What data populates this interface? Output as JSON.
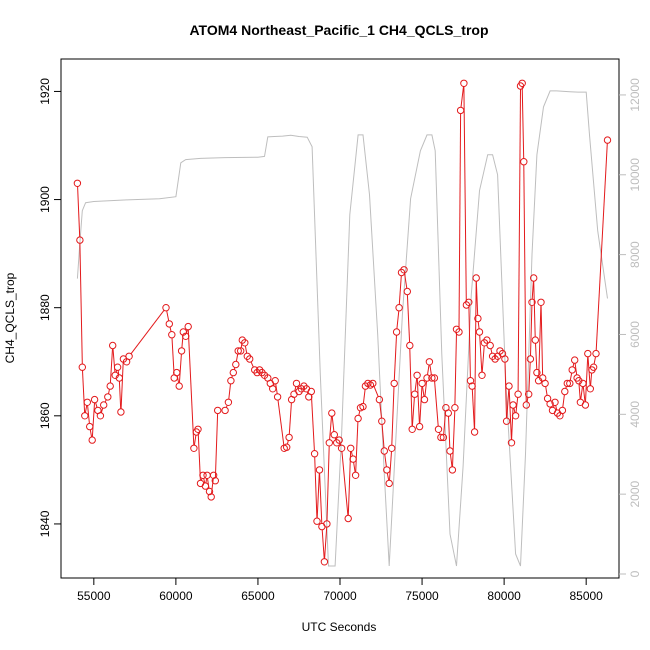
{
  "chart_data": {
    "type": "line",
    "title": "ATOM4 Northeast_Pacific_1 CH4_QCLS_trop",
    "xlabel": "UTC Seconds",
    "ylabel": "CH4_QCLS_trop",
    "xlim": [
      53000,
      87000
    ],
    "ylim": [
      1830,
      1926
    ],
    "y2lim": [
      -100,
      12900
    ],
    "x_ticks": [
      55000,
      60000,
      65000,
      70000,
      75000,
      80000,
      85000
    ],
    "y_ticks": [
      1840,
      1860,
      1880,
      1900,
      1920
    ],
    "y2_ticks": [
      0,
      2000,
      4000,
      6000,
      8000,
      10000,
      12000
    ],
    "grid": false,
    "colors": {
      "primary": "#e31a1c",
      "secondary": "#bebebe",
      "axis": "#000000",
      "secondary_axis": "#bdbdbd"
    },
    "series": [
      {
        "axis": "left",
        "color": "#e31a1c",
        "marker": "open-circle",
        "points": [
          [
            54000,
            1903
          ],
          [
            54150,
            1892.5
          ],
          [
            54300,
            1869
          ],
          [
            54450,
            1860
          ],
          [
            54600,
            1862.5
          ],
          [
            54750,
            1858
          ],
          [
            54900,
            1855.5
          ],
          [
            55050,
            1863
          ],
          [
            55250,
            1861
          ],
          [
            55400,
            1860
          ],
          [
            55600,
            1862
          ],
          [
            55850,
            1863.5
          ],
          [
            56000,
            1865.5
          ],
          [
            56150,
            1873
          ],
          [
            56300,
            1867.5
          ],
          [
            56450,
            1869
          ],
          [
            56550,
            1867
          ],
          [
            56650,
            1860.7
          ],
          [
            56800,
            1870.5
          ],
          [
            57000,
            1870
          ],
          [
            57150,
            1871
          ],
          [
            59400,
            1880
          ],
          [
            59600,
            1877
          ],
          [
            59750,
            1875
          ],
          [
            59900,
            1867
          ],
          [
            60050,
            1868
          ],
          [
            60200,
            1865.5
          ],
          [
            60350,
            1872
          ],
          [
            60450,
            1875.5
          ],
          [
            60600,
            1874.7
          ],
          [
            60750,
            1876.5
          ],
          [
            61100,
            1854
          ],
          [
            61250,
            1857
          ],
          [
            61350,
            1857.5
          ],
          [
            61500,
            1847.5
          ],
          [
            61650,
            1849
          ],
          [
            61800,
            1847
          ],
          [
            61900,
            1849
          ],
          [
            62050,
            1846
          ],
          [
            62150,
            1845
          ],
          [
            62300,
            1849
          ],
          [
            62400,
            1848
          ],
          [
            62550,
            1861
          ],
          [
            63000,
            1861
          ],
          [
            63200,
            1862.5
          ],
          [
            63350,
            1866.5
          ],
          [
            63500,
            1868
          ],
          [
            63650,
            1869.5
          ],
          [
            63800,
            1872
          ],
          [
            63950,
            1872
          ],
          [
            64050,
            1874
          ],
          [
            64200,
            1873.5
          ],
          [
            64350,
            1871
          ],
          [
            64500,
            1870.5
          ],
          [
            64800,
            1868.5
          ],
          [
            64950,
            1868
          ],
          [
            65100,
            1868.5
          ],
          [
            65250,
            1868
          ],
          [
            65400,
            1867.5
          ],
          [
            65600,
            1867
          ],
          [
            65750,
            1866
          ],
          [
            65900,
            1865
          ],
          [
            66050,
            1866.5
          ],
          [
            66200,
            1863.5
          ],
          [
            66600,
            1854
          ],
          [
            66750,
            1854.2
          ],
          [
            66900,
            1856
          ],
          [
            67050,
            1863
          ],
          [
            67200,
            1864
          ],
          [
            67350,
            1866
          ],
          [
            67500,
            1864.5
          ],
          [
            67650,
            1865
          ],
          [
            67800,
            1865.5
          ],
          [
            67950,
            1865
          ],
          [
            68100,
            1863.5
          ],
          [
            68250,
            1864.5
          ],
          [
            68450,
            1853
          ],
          [
            68600,
            1840.5
          ],
          [
            68750,
            1850
          ],
          [
            68900,
            1839.5
          ],
          [
            69050,
            1833
          ],
          [
            69200,
            1840
          ],
          [
            69350,
            1855
          ],
          [
            69500,
            1860.5
          ],
          [
            69650,
            1856.5
          ],
          [
            69800,
            1855
          ],
          [
            69950,
            1855.5
          ],
          [
            70100,
            1854
          ],
          [
            70500,
            1841
          ],
          [
            70650,
            1854
          ],
          [
            70800,
            1852
          ],
          [
            70950,
            1849
          ],
          [
            71100,
            1859.5
          ],
          [
            71250,
            1861.5
          ],
          [
            71400,
            1861.7
          ],
          [
            71550,
            1865.5
          ],
          [
            71700,
            1866
          ],
          [
            71850,
            1865.7
          ],
          [
            72000,
            1866
          ],
          [
            72400,
            1863
          ],
          [
            72550,
            1859
          ],
          [
            72700,
            1853.5
          ],
          [
            72850,
            1850
          ],
          [
            73000,
            1847.5
          ],
          [
            73150,
            1854
          ],
          [
            73300,
            1866
          ],
          [
            73450,
            1875.5
          ],
          [
            73600,
            1880
          ],
          [
            73750,
            1886.5
          ],
          [
            73900,
            1887
          ],
          [
            74100,
            1883
          ],
          [
            74250,
            1873
          ],
          [
            74400,
            1857.5
          ],
          [
            74550,
            1864
          ],
          [
            74700,
            1867.5
          ],
          [
            74850,
            1858
          ],
          [
            75000,
            1866
          ],
          [
            75150,
            1863
          ],
          [
            75300,
            1867
          ],
          [
            75450,
            1870
          ],
          [
            75600,
            1867
          ],
          [
            75750,
            1867
          ],
          [
            76000,
            1857.5
          ],
          [
            76150,
            1856
          ],
          [
            76300,
            1856
          ],
          [
            76450,
            1861.5
          ],
          [
            76600,
            1860.5
          ],
          [
            76700,
            1853.5
          ],
          [
            76850,
            1850
          ],
          [
            77000,
            1861.5
          ],
          [
            77100,
            1876
          ],
          [
            77250,
            1875.5
          ],
          [
            77350,
            1916.5
          ],
          [
            77550,
            1921.5
          ],
          [
            77700,
            1880.5
          ],
          [
            77850,
            1881
          ],
          [
            77950,
            1866.5
          ],
          [
            78050,
            1865.5
          ],
          [
            78200,
            1857
          ],
          [
            78300,
            1885.5
          ],
          [
            78400,
            1878
          ],
          [
            78500,
            1875.5
          ],
          [
            78650,
            1867.5
          ],
          [
            78800,
            1873.5
          ],
          [
            78950,
            1874
          ],
          [
            79150,
            1873
          ],
          [
            79300,
            1871
          ],
          [
            79450,
            1870.5
          ],
          [
            79600,
            1871
          ],
          [
            79750,
            1872
          ],
          [
            79900,
            1871.5
          ],
          [
            80050,
            1870.5
          ],
          [
            80150,
            1859
          ],
          [
            80300,
            1865.5
          ],
          [
            80450,
            1855
          ],
          [
            80550,
            1862
          ],
          [
            80700,
            1860
          ],
          [
            80850,
            1864
          ],
          [
            81000,
            1921
          ],
          [
            81100,
            1921.5
          ],
          [
            81200,
            1907
          ],
          [
            81350,
            1862
          ],
          [
            81500,
            1864
          ],
          [
            81600,
            1870.5
          ],
          [
            81700,
            1881
          ],
          [
            81800,
            1885.5
          ],
          [
            81900,
            1874
          ],
          [
            82000,
            1868
          ],
          [
            82100,
            1866.5
          ],
          [
            82250,
            1881
          ],
          [
            82350,
            1867
          ],
          [
            82500,
            1866
          ],
          [
            82650,
            1863.2
          ],
          [
            82800,
            1862.2
          ],
          [
            82950,
            1861
          ],
          [
            83100,
            1862.5
          ],
          [
            83250,
            1860.5
          ],
          [
            83400,
            1860
          ],
          [
            83550,
            1861
          ],
          [
            83700,
            1864.5
          ],
          [
            83850,
            1866
          ],
          [
            84000,
            1866
          ],
          [
            84150,
            1868.5
          ],
          [
            84300,
            1870.3
          ],
          [
            84450,
            1867
          ],
          [
            84550,
            1866.5
          ],
          [
            84650,
            1862.5
          ],
          [
            84800,
            1866
          ],
          [
            84950,
            1862
          ],
          [
            85100,
            1871.5
          ],
          [
            85250,
            1865
          ],
          [
            85350,
            1868.5
          ],
          [
            85450,
            1869
          ],
          [
            85600,
            1871.5
          ],
          [
            86300,
            1911
          ]
        ]
      },
      {
        "axis": "right",
        "color": "#bebebe",
        "marker": "none",
        "points": [
          [
            54000,
            7400
          ],
          [
            54150,
            8300
          ],
          [
            54300,
            9100
          ],
          [
            54500,
            9300
          ],
          [
            55000,
            9330
          ],
          [
            57000,
            9370
          ],
          [
            59000,
            9400
          ],
          [
            60000,
            9450
          ],
          [
            60300,
            10300
          ],
          [
            60600,
            10380
          ],
          [
            61500,
            10410
          ],
          [
            63000,
            10430
          ],
          [
            65000,
            10440
          ],
          [
            65400,
            10460
          ],
          [
            65600,
            10950
          ],
          [
            66000,
            10960
          ],
          [
            66500,
            10970
          ],
          [
            67000,
            10990
          ],
          [
            67500,
            10960
          ],
          [
            68000,
            10940
          ],
          [
            68300,
            10700
          ],
          [
            68800,
            5000
          ],
          [
            69300,
            200
          ],
          [
            69700,
            200
          ],
          [
            70100,
            3500
          ],
          [
            70600,
            9000
          ],
          [
            71100,
            11000
          ],
          [
            71400,
            11000
          ],
          [
            71800,
            9500
          ],
          [
            72300,
            6000
          ],
          [
            72700,
            2500
          ],
          [
            73000,
            200
          ],
          [
            73300,
            2600
          ],
          [
            73800,
            6500
          ],
          [
            74300,
            9400
          ],
          [
            74900,
            10600
          ],
          [
            75300,
            11000
          ],
          [
            75600,
            11000
          ],
          [
            75800,
            10600
          ],
          [
            76200,
            5500
          ],
          [
            76700,
            1000
          ],
          [
            77100,
            200
          ],
          [
            77500,
            2700
          ],
          [
            78000,
            7000
          ],
          [
            78500,
            9600
          ],
          [
            79000,
            10500
          ],
          [
            79300,
            10500
          ],
          [
            79600,
            10000
          ],
          [
            80100,
            4800
          ],
          [
            80700,
            500
          ],
          [
            81000,
            200
          ],
          [
            81300,
            3000
          ],
          [
            81700,
            8000
          ],
          [
            82000,
            10500
          ],
          [
            82400,
            11700
          ],
          [
            82800,
            12100
          ],
          [
            83200,
            12100
          ],
          [
            84000,
            12080
          ],
          [
            84500,
            12070
          ],
          [
            85000,
            12070
          ],
          [
            85200,
            11000
          ],
          [
            85700,
            8600
          ],
          [
            86300,
            6900
          ]
        ]
      }
    ]
  }
}
